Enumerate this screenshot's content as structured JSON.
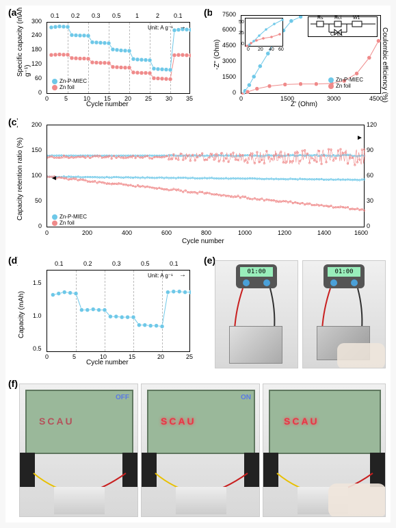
{
  "figure": {
    "a": {
      "label": "(a)",
      "type": "line-scatter",
      "ylabel": "Specific capacity (mAh g⁻¹)",
      "xlabel": "Cycle number",
      "ylim": [
        0,
        300
      ],
      "ytick_step": 60,
      "xlim": [
        0,
        35
      ],
      "xtick_step": 5,
      "top_labels": [
        "0.1",
        "0.2",
        "0.3",
        "0.5",
        "1",
        "2",
        "0.1"
      ],
      "unit_text": "Unit: A g⁻¹",
      "grid_positions": [
        5,
        10,
        15,
        20,
        25,
        30
      ],
      "series": [
        {
          "name": "Zn-P-MIEC",
          "color": "#6ec8e8",
          "marker": "circle",
          "x": [
            1,
            2,
            3,
            4,
            5,
            6,
            7,
            8,
            9,
            10,
            11,
            12,
            13,
            14,
            15,
            16,
            17,
            18,
            19,
            20,
            21,
            22,
            23,
            24,
            25,
            26,
            27,
            28,
            29,
            30,
            31,
            32,
            33,
            34,
            35
          ],
          "y": [
            280,
            282,
            284,
            283,
            282,
            248,
            247,
            246,
            246,
            245,
            218,
            217,
            216,
            215,
            214,
            188,
            186,
            184,
            183,
            182,
            148,
            146,
            145,
            144,
            143,
            108,
            106,
            105,
            104,
            103,
            268,
            270,
            272,
            271,
            270
          ]
        },
        {
          "name": "Zn foil",
          "color": "#ef8a8a",
          "marker": "circle",
          "x": [
            1,
            2,
            3,
            4,
            5,
            6,
            7,
            8,
            9,
            10,
            11,
            12,
            13,
            14,
            15,
            16,
            17,
            18,
            19,
            20,
            21,
            22,
            23,
            24,
            25,
            26,
            27,
            28,
            29,
            30,
            31,
            32,
            33,
            34,
            35
          ],
          "y": [
            165,
            166,
            167,
            166,
            166,
            152,
            151,
            150,
            150,
            149,
            134,
            133,
            132,
            132,
            131,
            115,
            114,
            113,
            112,
            112,
            92,
            91,
            90,
            90,
            89,
            68,
            67,
            66,
            65,
            64,
            164,
            165,
            165,
            164,
            163
          ]
        }
      ],
      "legend_pos": "bottom-left"
    },
    "b": {
      "label": "(b)",
      "type": "nyquist",
      "ylabel": "-Z'' (Ohm)",
      "xlabel": "Z' (Ohm)",
      "ylim": [
        0,
        7500
      ],
      "ytick_step": 1500,
      "xlim": [
        0,
        4500
      ],
      "xtick_step": 1500,
      "inset": {
        "xlim": [
          0,
          60
        ],
        "ylim": [
          0,
          50
        ],
        "xtick_step": 20,
        "ytick_step": 25
      },
      "circuit_labels": [
        "Rs",
        "Rct",
        "W1",
        "CPE1"
      ],
      "series": [
        {
          "name": "Zn-P-MIEC",
          "color": "#6ec8e8",
          "x": [
            10,
            50,
            120,
            250,
            400,
            600,
            850,
            1100,
            1350,
            1600,
            1900
          ],
          "y": [
            5,
            80,
            350,
            900,
            1700,
            2700,
            3900,
            5200,
            6100,
            7000,
            7400
          ]
        },
        {
          "name": "Zn foil",
          "color": "#ef8a8a",
          "x": [
            20,
            200,
            500,
            900,
            1400,
            1900,
            2400,
            2900,
            3300,
            3700,
            4100,
            4400
          ],
          "y": [
            10,
            250,
            550,
            800,
            950,
            1000,
            1000,
            1050,
            1300,
            2000,
            3500,
            5100
          ]
        }
      ],
      "legend_pos": "bottom-right"
    },
    "c": {
      "label": "(c)",
      "type": "dual-axis-line",
      "ylabel_left": "Capacity retention ratio (%)",
      "ylabel_right": "Coulombic efficiency (%)",
      "xlabel": "Cycle number",
      "ylim_left": [
        0,
        200
      ],
      "ytick_left": [
        0,
        50,
        100,
        150,
        200
      ],
      "ylim_right": [
        0,
        120
      ],
      "ytick_right": [
        0,
        30,
        60,
        90,
        120
      ],
      "xlim": [
        0,
        1600
      ],
      "xtick_step": 200,
      "series": [
        {
          "name": "Zn-P-MIEC",
          "color": "#6ec8e8"
        },
        {
          "name": "Zn foil",
          "color": "#ef8a8a"
        }
      ],
      "capacity_lines": {
        "zn_p_miec": {
          "start_y": 100,
          "end_y": 94
        },
        "zn_foil": {
          "start_y": 100,
          "end_y": 35
        }
      },
      "ce_lines": {
        "zn_p_miec": {
          "value": 141,
          "scatter_range": 2
        },
        "zn_foil": {
          "value": 138,
          "scatter_range_start": 3,
          "scatter_range_end": 35
        }
      },
      "legend_pos": "bottom-left"
    },
    "d": {
      "label": "(d)",
      "type": "line-scatter",
      "ylabel": "Capacity (mAh)",
      "xlabel": "Cycle number",
      "ylim": [
        0.5,
        1.75
      ],
      "yticks": [
        0.5,
        1.0,
        1.5
      ],
      "xlim": [
        0,
        25
      ],
      "xtick_step": 5,
      "top_labels": [
        "0.1",
        "0.2",
        "0.3",
        "0.5",
        "0.1"
      ],
      "unit_text": "Unit: A g⁻¹",
      "grid_positions": [
        5,
        10,
        15,
        20
      ],
      "series": [
        {
          "name": "Zn-P-MIEC",
          "color": "#6ec8e8",
          "x": [
            1,
            2,
            3,
            4,
            5,
            6,
            7,
            8,
            9,
            10,
            11,
            12,
            13,
            14,
            15,
            16,
            17,
            18,
            19,
            20,
            21,
            22,
            23,
            24,
            25
          ],
          "y": [
            1.38,
            1.4,
            1.42,
            1.41,
            1.4,
            1.15,
            1.15,
            1.16,
            1.15,
            1.15,
            1.05,
            1.05,
            1.04,
            1.04,
            1.04,
            0.92,
            0.92,
            0.91,
            0.91,
            0.9,
            1.42,
            1.43,
            1.43,
            1.42,
            1.42
          ]
        }
      ]
    },
    "e": {
      "label": "(e)",
      "type": "photo",
      "description": "Two photos of pouch cell connected to timer display",
      "timer_readings": [
        "01:00",
        "01:00"
      ],
      "wire_colors": [
        "#c82020",
        "#303030"
      ]
    },
    "f": {
      "label": "(f)",
      "type": "photo",
      "description": "Three LED board photos showing SCAU",
      "led_text": "SCAU",
      "states": [
        "OFF",
        "ON",
        "ON"
      ],
      "label_colors": {
        "OFF": "#5a7ae5",
        "ON": "#5a7ae5"
      },
      "led_color_off": "#b4515a",
      "led_color_on": "#e83545",
      "board_color": "#9ab89a"
    },
    "colors": {
      "series1": "#6ec8e8",
      "series2": "#ef8a8a",
      "grid": "#bbbbbb",
      "axis": "#000000"
    }
  }
}
